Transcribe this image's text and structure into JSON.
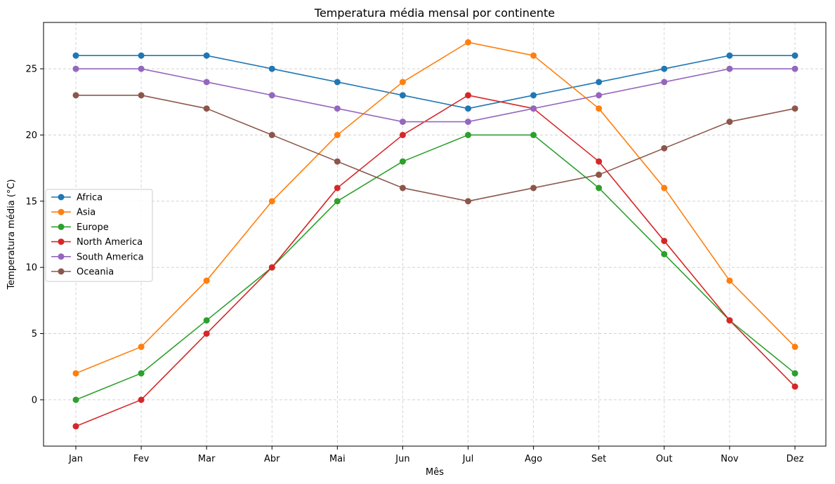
{
  "chart_data": {
    "type": "line",
    "title": "Temperatura média mensal por continente",
    "xlabel": "Mês",
    "ylabel": "Temperatura média (°C)",
    "categories": [
      "Jan",
      "Fev",
      "Mar",
      "Abr",
      "Mai",
      "Jun",
      "Jul",
      "Ago",
      "Set",
      "Out",
      "Nov",
      "Dez"
    ],
    "ylim": [
      -3.5,
      28.5
    ],
    "yticks": [
      0,
      5,
      10,
      15,
      20,
      25
    ],
    "grid": true,
    "legend_position": "center-left",
    "markers": "circle",
    "series": [
      {
        "name": "Africa",
        "color": "#1f77b4",
        "values": [
          26,
          26,
          26,
          25,
          24,
          23,
          22,
          23,
          24,
          25,
          26,
          26
        ]
      },
      {
        "name": "Asia",
        "color": "#ff7f0e",
        "values": [
          2,
          4,
          9,
          15,
          20,
          24,
          27,
          26,
          22,
          16,
          9,
          4
        ]
      },
      {
        "name": "Europe",
        "color": "#2ca02c",
        "values": [
          0,
          2,
          6,
          10,
          15,
          18,
          20,
          20,
          16,
          11,
          6,
          2
        ]
      },
      {
        "name": "North America",
        "color": "#d62728",
        "values": [
          -2,
          0,
          5,
          10,
          16,
          20,
          23,
          22,
          18,
          12,
          6,
          1
        ]
      },
      {
        "name": "South America",
        "color": "#9467bd",
        "values": [
          25,
          25,
          24,
          23,
          22,
          21,
          21,
          22,
          23,
          24,
          25,
          25
        ]
      },
      {
        "name": "Oceania",
        "color": "#8c564b",
        "values": [
          23,
          23,
          22,
          20,
          18,
          16,
          15,
          16,
          17,
          19,
          21,
          22
        ]
      }
    ]
  }
}
